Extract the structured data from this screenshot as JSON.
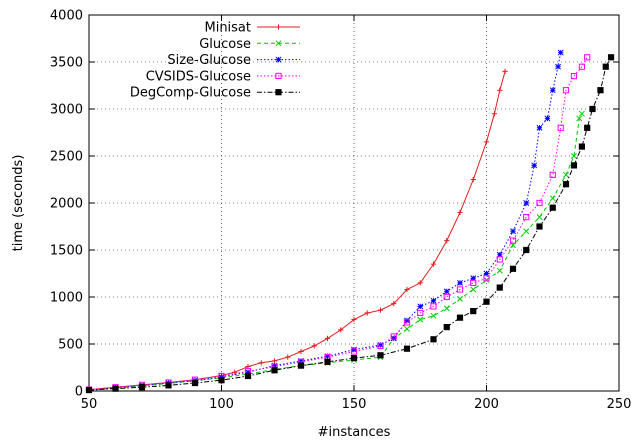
{
  "chart_data": {
    "type": "line",
    "title": "",
    "xlabel": "#instances",
    "ylabel": "time (seconds)",
    "xlim": [
      50,
      250
    ],
    "ylim": [
      0,
      4000
    ],
    "xticks": [
      50,
      100,
      150,
      200,
      250
    ],
    "yticks": [
      0,
      500,
      1000,
      1500,
      2000,
      2500,
      3000,
      3500,
      4000
    ],
    "grid": true,
    "legend_position": "top-left",
    "series": [
      {
        "name": "Minisat",
        "color": "#e41a1c",
        "dash": "solid",
        "marker": "plus",
        "points": [
          [
            50,
            15
          ],
          [
            60,
            40
          ],
          [
            70,
            65
          ],
          [
            80,
            90
          ],
          [
            90,
            120
          ],
          [
            100,
            165
          ],
          [
            105,
            200
          ],
          [
            110,
            260
          ],
          [
            115,
            300
          ],
          [
            120,
            320
          ],
          [
            125,
            360
          ],
          [
            130,
            420
          ],
          [
            135,
            480
          ],
          [
            140,
            560
          ],
          [
            145,
            650
          ],
          [
            150,
            760
          ],
          [
            155,
            830
          ],
          [
            160,
            860
          ],
          [
            165,
            930
          ],
          [
            170,
            1080
          ],
          [
            175,
            1150
          ],
          [
            180,
            1350
          ],
          [
            185,
            1600
          ],
          [
            190,
            1900
          ],
          [
            195,
            2250
          ],
          [
            200,
            2650
          ],
          [
            203,
            2950
          ],
          [
            205,
            3200
          ],
          [
            207,
            3400
          ]
        ]
      },
      {
        "name": "Glucose",
        "color": "#00cc00",
        "dash": "dashed",
        "marker": "x",
        "points": [
          [
            50,
            10
          ],
          [
            60,
            30
          ],
          [
            70,
            55
          ],
          [
            80,
            80
          ],
          [
            90,
            110
          ],
          [
            100,
            140
          ],
          [
            110,
            180
          ],
          [
            120,
            230
          ],
          [
            130,
            270
          ],
          [
            140,
            300
          ],
          [
            150,
            330
          ],
          [
            160,
            360
          ],
          [
            165,
            560
          ],
          [
            170,
            660
          ],
          [
            175,
            760
          ],
          [
            180,
            800
          ],
          [
            185,
            880
          ],
          [
            190,
            980
          ],
          [
            195,
            1080
          ],
          [
            200,
            1180
          ],
          [
            205,
            1280
          ],
          [
            210,
            1550
          ],
          [
            215,
            1700
          ],
          [
            220,
            1850
          ],
          [
            225,
            2050
          ],
          [
            230,
            2300
          ],
          [
            233,
            2500
          ],
          [
            235,
            2900
          ],
          [
            236,
            2950
          ]
        ]
      },
      {
        "name": "Size-Glucose",
        "color": "#0000ff",
        "dash": "dotted",
        "marker": "star",
        "points": [
          [
            50,
            10
          ],
          [
            60,
            35
          ],
          [
            70,
            60
          ],
          [
            80,
            85
          ],
          [
            90,
            110
          ],
          [
            100,
            150
          ],
          [
            110,
            200
          ],
          [
            120,
            270
          ],
          [
            130,
            320
          ],
          [
            140,
            370
          ],
          [
            150,
            440
          ],
          [
            160,
            490
          ],
          [
            165,
            560
          ],
          [
            170,
            750
          ],
          [
            175,
            900
          ],
          [
            180,
            960
          ],
          [
            185,
            1060
          ],
          [
            190,
            1150
          ],
          [
            195,
            1200
          ],
          [
            200,
            1250
          ],
          [
            205,
            1450
          ],
          [
            210,
            1700
          ],
          [
            215,
            2000
          ],
          [
            218,
            2400
          ],
          [
            220,
            2800
          ],
          [
            223,
            2900
          ],
          [
            225,
            3200
          ],
          [
            227,
            3450
          ],
          [
            228,
            3600
          ]
        ]
      },
      {
        "name": "CVSIDS-Glucose",
        "color": "#ff00ff",
        "dash": "dotted",
        "marker": "square",
        "points": [
          [
            50,
            15
          ],
          [
            60,
            40
          ],
          [
            70,
            65
          ],
          [
            80,
            90
          ],
          [
            90,
            120
          ],
          [
            100,
            160
          ],
          [
            110,
            210
          ],
          [
            120,
            260
          ],
          [
            130,
            310
          ],
          [
            140,
            360
          ],
          [
            150,
            420
          ],
          [
            160,
            480
          ],
          [
            165,
            580
          ],
          [
            170,
            730
          ],
          [
            175,
            830
          ],
          [
            180,
            900
          ],
          [
            185,
            1000
          ],
          [
            190,
            1080
          ],
          [
            195,
            1150
          ],
          [
            200,
            1200
          ],
          [
            205,
            1400
          ],
          [
            210,
            1600
          ],
          [
            215,
            1850
          ],
          [
            220,
            2000
          ],
          [
            225,
            2300
          ],
          [
            228,
            2800
          ],
          [
            230,
            3200
          ],
          [
            233,
            3350
          ],
          [
            236,
            3450
          ],
          [
            238,
            3550
          ]
        ]
      },
      {
        "name": "DegComp-Glucose",
        "color": "#000000",
        "dash": "dashdot",
        "marker": "filled-square",
        "points": [
          [
            50,
            10
          ],
          [
            60,
            25
          ],
          [
            70,
            40
          ],
          [
            80,
            60
          ],
          [
            90,
            85
          ],
          [
            100,
            115
          ],
          [
            110,
            160
          ],
          [
            120,
            220
          ],
          [
            130,
            270
          ],
          [
            140,
            310
          ],
          [
            150,
            350
          ],
          [
            160,
            380
          ],
          [
            170,
            450
          ],
          [
            180,
            550
          ],
          [
            185,
            680
          ],
          [
            190,
            780
          ],
          [
            195,
            850
          ],
          [
            200,
            950
          ],
          [
            205,
            1100
          ],
          [
            210,
            1300
          ],
          [
            215,
            1500
          ],
          [
            220,
            1750
          ],
          [
            225,
            1950
          ],
          [
            230,
            2200
          ],
          [
            233,
            2400
          ],
          [
            236,
            2600
          ],
          [
            238,
            2800
          ],
          [
            240,
            3000
          ],
          [
            243,
            3200
          ],
          [
            245,
            3450
          ],
          [
            247,
            3550
          ]
        ]
      }
    ]
  }
}
